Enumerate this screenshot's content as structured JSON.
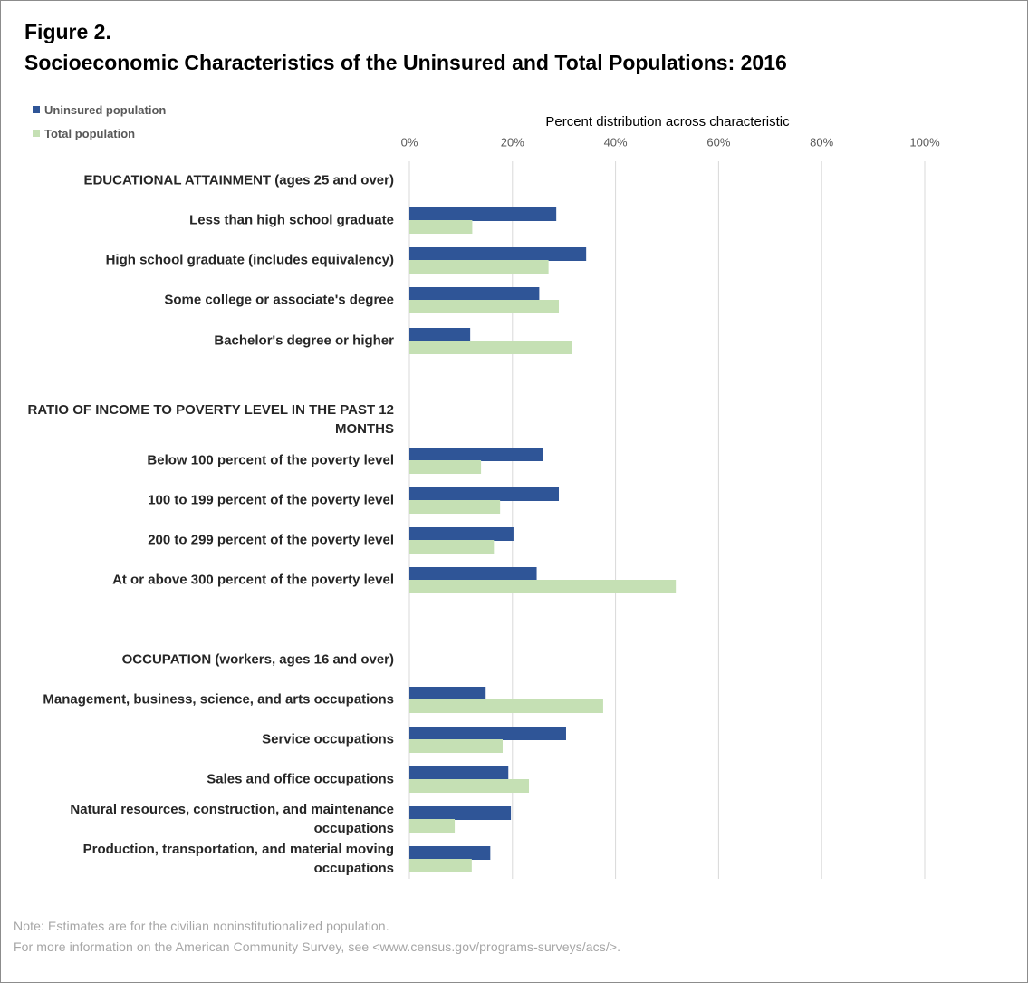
{
  "figure_label": "Figure 2.",
  "title": "Socioeconomic Characteristics of the Uninsured and Total Populations: 2016",
  "colors": {
    "uninsured": "#2f5597",
    "total": "#c5e0b4",
    "grid": "#d9d9d9",
    "text": "#262626"
  },
  "legend": [
    {
      "label": "Uninsured population",
      "color": "#2f5597"
    },
    {
      "label": "Total population",
      "color": "#c5e0b4"
    }
  ],
  "notes": [
    "Note: Estimates are for the civilian noninstitutionalized  population.",
    "For more information on the American Community Survey,  see <www.census.gov/programs-surveys/acs/>."
  ],
  "chart_data": {
    "type": "bar",
    "orientation": "horizontal",
    "xlabel": "Percent distribution across characteristic",
    "xlim": [
      0,
      100
    ],
    "x_ticks": [
      "0%",
      "20%",
      "40%",
      "60%",
      "80%",
      "100%"
    ],
    "grid": true,
    "legend_position": "top-left",
    "series": [
      {
        "name": "Uninsured population",
        "color": "#2f5597"
      },
      {
        "name": "Total population",
        "color": "#c5e0b4"
      }
    ],
    "groups": [
      {
        "heading": [
          "EDUCATIONAL ATTAINMENT (ages 25 and over)"
        ],
        "categories": [
          {
            "label": [
              "Less than high school graduate"
            ],
            "uninsured": 28.5,
            "total": 12.2
          },
          {
            "label": [
              "High school graduate (includes equivalency)"
            ],
            "uninsured": 34.3,
            "total": 27.0
          },
          {
            "label": [
              "Some college or associate's degree"
            ],
            "uninsured": 25.2,
            "total": 29.0
          },
          {
            "label": [
              "Bachelor's degree or higher"
            ],
            "uninsured": 11.8,
            "total": 31.5
          }
        ]
      },
      {
        "heading": [
          "RATIO OF INCOME TO POVERTY LEVEL IN THE PAST 12",
          "MONTHS"
        ],
        "categories": [
          {
            "label": [
              "Below 100 percent of the poverty level"
            ],
            "uninsured": 26.0,
            "total": 13.9
          },
          {
            "label": [
              "100 to 199 percent of the poverty level"
            ],
            "uninsured": 29.0,
            "total": 17.6
          },
          {
            "label": [
              "200 to 299 percent of the poverty level"
            ],
            "uninsured": 20.2,
            "total": 16.4
          },
          {
            "label": [
              "At or above 300 percent of the poverty level"
            ],
            "uninsured": 24.7,
            "total": 51.7
          }
        ]
      },
      {
        "heading": [
          "OCCUPATION (workers, ages 16 and over)"
        ],
        "categories": [
          {
            "label": [
              "Management, business, science, and arts occupations"
            ],
            "uninsured": 14.8,
            "total": 37.6
          },
          {
            "label": [
              "Service occupations"
            ],
            "uninsured": 30.4,
            "total": 18.1
          },
          {
            "label": [
              "Sales and office occupations"
            ],
            "uninsured": 19.2,
            "total": 23.2
          },
          {
            "label": [
              "Natural resources, construction, and maintenance",
              "occupations"
            ],
            "uninsured": 19.7,
            "total": 8.8
          },
          {
            "label": [
              "Production, transportation, and material moving",
              "occupations"
            ],
            "uninsured": 15.7,
            "total": 12.1
          }
        ]
      }
    ]
  }
}
